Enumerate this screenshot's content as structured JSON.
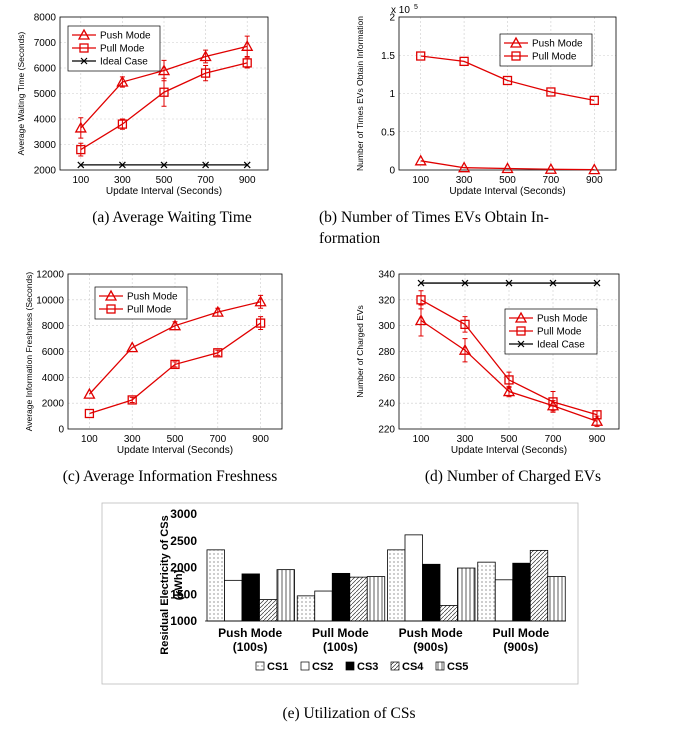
{
  "chart_data": [
    {
      "id": "a",
      "type": "line",
      "caption": "(a) Average Waiting Time",
      "xlabel": "Update Interval (Seconds)",
      "ylabel": "Average Waiting Time (Seconds)",
      "x": [
        100,
        300,
        500,
        700,
        900
      ],
      "ylim": [
        2000,
        8000
      ],
      "yticks": [
        2000,
        3000,
        4000,
        5000,
        6000,
        7000,
        8000
      ],
      "legend": "top-left",
      "series": [
        {
          "name": "Push Mode",
          "marker": "triangle",
          "color": "#e00000",
          "values": [
            3650,
            5450,
            5900,
            6450,
            6850
          ],
          "err": [
            400,
            200,
            400,
            250,
            400
          ]
        },
        {
          "name": "Pull Mode",
          "marker": "square",
          "color": "#e00000",
          "values": [
            2800,
            3800,
            5050,
            5800,
            6200
          ],
          "err": [
            250,
            200,
            550,
            300,
            200
          ]
        },
        {
          "name": "Ideal Case",
          "marker": "x",
          "color": "#000000",
          "values": [
            2200,
            2200,
            2200,
            2200,
            2200
          ],
          "err": [
            0,
            0,
            0,
            0,
            0
          ]
        }
      ]
    },
    {
      "id": "b",
      "type": "line",
      "caption_lines": [
        "(b) Number of Times EVs Obtain In-",
        "formation"
      ],
      "xlabel": "Update Interval (Seconds)",
      "ylabel": "Number of Times EVs Obtain Information",
      "multiplier_label": "x 10",
      "multiplier_exp": "5",
      "x": [
        100,
        300,
        500,
        700,
        900
      ],
      "ylim": [
        0,
        2
      ],
      "yticks": [
        0,
        0.5,
        1,
        1.5,
        2
      ],
      "ytick_labels": [
        "0",
        "0.5",
        "1",
        "1.5",
        "2"
      ],
      "legend": "top-right",
      "series": [
        {
          "name": "Push Mode",
          "marker": "triangle",
          "color": "#e00000",
          "values": [
            0.12,
            0.03,
            0.02,
            0.01,
            0.005
          ],
          "err": [
            0,
            0,
            0,
            0,
            0
          ]
        },
        {
          "name": "Pull Mode",
          "marker": "square",
          "color": "#e00000",
          "values": [
            1.49,
            1.42,
            1.17,
            1.02,
            0.91
          ],
          "err": [
            0,
            0,
            0,
            0,
            0
          ]
        }
      ]
    },
    {
      "id": "c",
      "type": "line",
      "caption": "(c) Average Information Freshness",
      "xlabel": "Update Interval (Seconds)",
      "ylabel": "Average Information Freshness (Seconds)",
      "x": [
        100,
        300,
        500,
        700,
        900
      ],
      "ylim": [
        0,
        12000
      ],
      "yticks": [
        0,
        2000,
        4000,
        6000,
        8000,
        10000,
        12000
      ],
      "legend": "top-left",
      "series": [
        {
          "name": "Push Mode",
          "marker": "triangle",
          "color": "#e00000",
          "values": [
            2700,
            6300,
            8000,
            9050,
            9850
          ],
          "err": [
            0,
            0,
            300,
            300,
            500
          ]
        },
        {
          "name": "Pull Mode",
          "marker": "square",
          "color": "#e00000",
          "values": [
            1200,
            2250,
            5000,
            5900,
            8200
          ],
          "err": [
            0,
            200,
            200,
            200,
            500
          ]
        }
      ]
    },
    {
      "id": "d",
      "type": "line",
      "caption": "(d) Number of Charged EVs",
      "xlabel": "Update Interval (Seconds)",
      "ylabel": "Number of Charged EVs",
      "x": [
        100,
        300,
        500,
        700,
        900
      ],
      "ylim": [
        220,
        340
      ],
      "yticks": [
        220,
        240,
        260,
        280,
        300,
        320,
        340
      ],
      "legend": "right",
      "series": [
        {
          "name": "Push Mode",
          "marker": "triangle",
          "color": "#e00000",
          "values": [
            304,
            281,
            249,
            238,
            226
          ],
          "err": [
            12,
            9,
            4,
            4,
            4
          ]
        },
        {
          "name": "Pull Mode",
          "marker": "square",
          "color": "#e00000",
          "values": [
            320,
            301,
            258,
            241,
            231
          ],
          "err": [
            7,
            6,
            6,
            8,
            3
          ]
        },
        {
          "name": "Ideal Case",
          "marker": "x",
          "color": "#000000",
          "values": [
            333,
            333,
            333,
            333,
            333
          ],
          "err": [
            0,
            0,
            0,
            0,
            0
          ]
        }
      ]
    },
    {
      "id": "e",
      "type": "bar",
      "caption": "(e) Utilization of CSs",
      "ylabel_lines": [
        "Residual Electricity of CSs",
        "(kWh)"
      ],
      "ylim": [
        1000,
        3000
      ],
      "yticks": [
        1000,
        1500,
        2000,
        2500,
        3000
      ],
      "group_lines": [
        [
          "Push Mode",
          "(100s)"
        ],
        [
          "Pull Mode",
          "(100s)"
        ],
        [
          "Push Mode",
          "(900s)"
        ],
        [
          "Pull Mode",
          "(900s)"
        ]
      ],
      "legend": "bottom",
      "series": [
        {
          "name": "CS1",
          "pattern": "dots",
          "values": [
            2330,
            1470,
            2330,
            2100
          ]
        },
        {
          "name": "CS2",
          "pattern": "white",
          "values": [
            1760,
            1560,
            2610,
            1770
          ]
        },
        {
          "name": "CS3",
          "pattern": "black",
          "values": [
            1880,
            1890,
            2060,
            2080
          ]
        },
        {
          "name": "CS4",
          "pattern": "diag",
          "values": [
            1400,
            1820,
            1290,
            2320
          ]
        },
        {
          "name": "CS5",
          "pattern": "vert",
          "values": [
            1960,
            1830,
            1990,
            1830
          ]
        }
      ]
    }
  ]
}
